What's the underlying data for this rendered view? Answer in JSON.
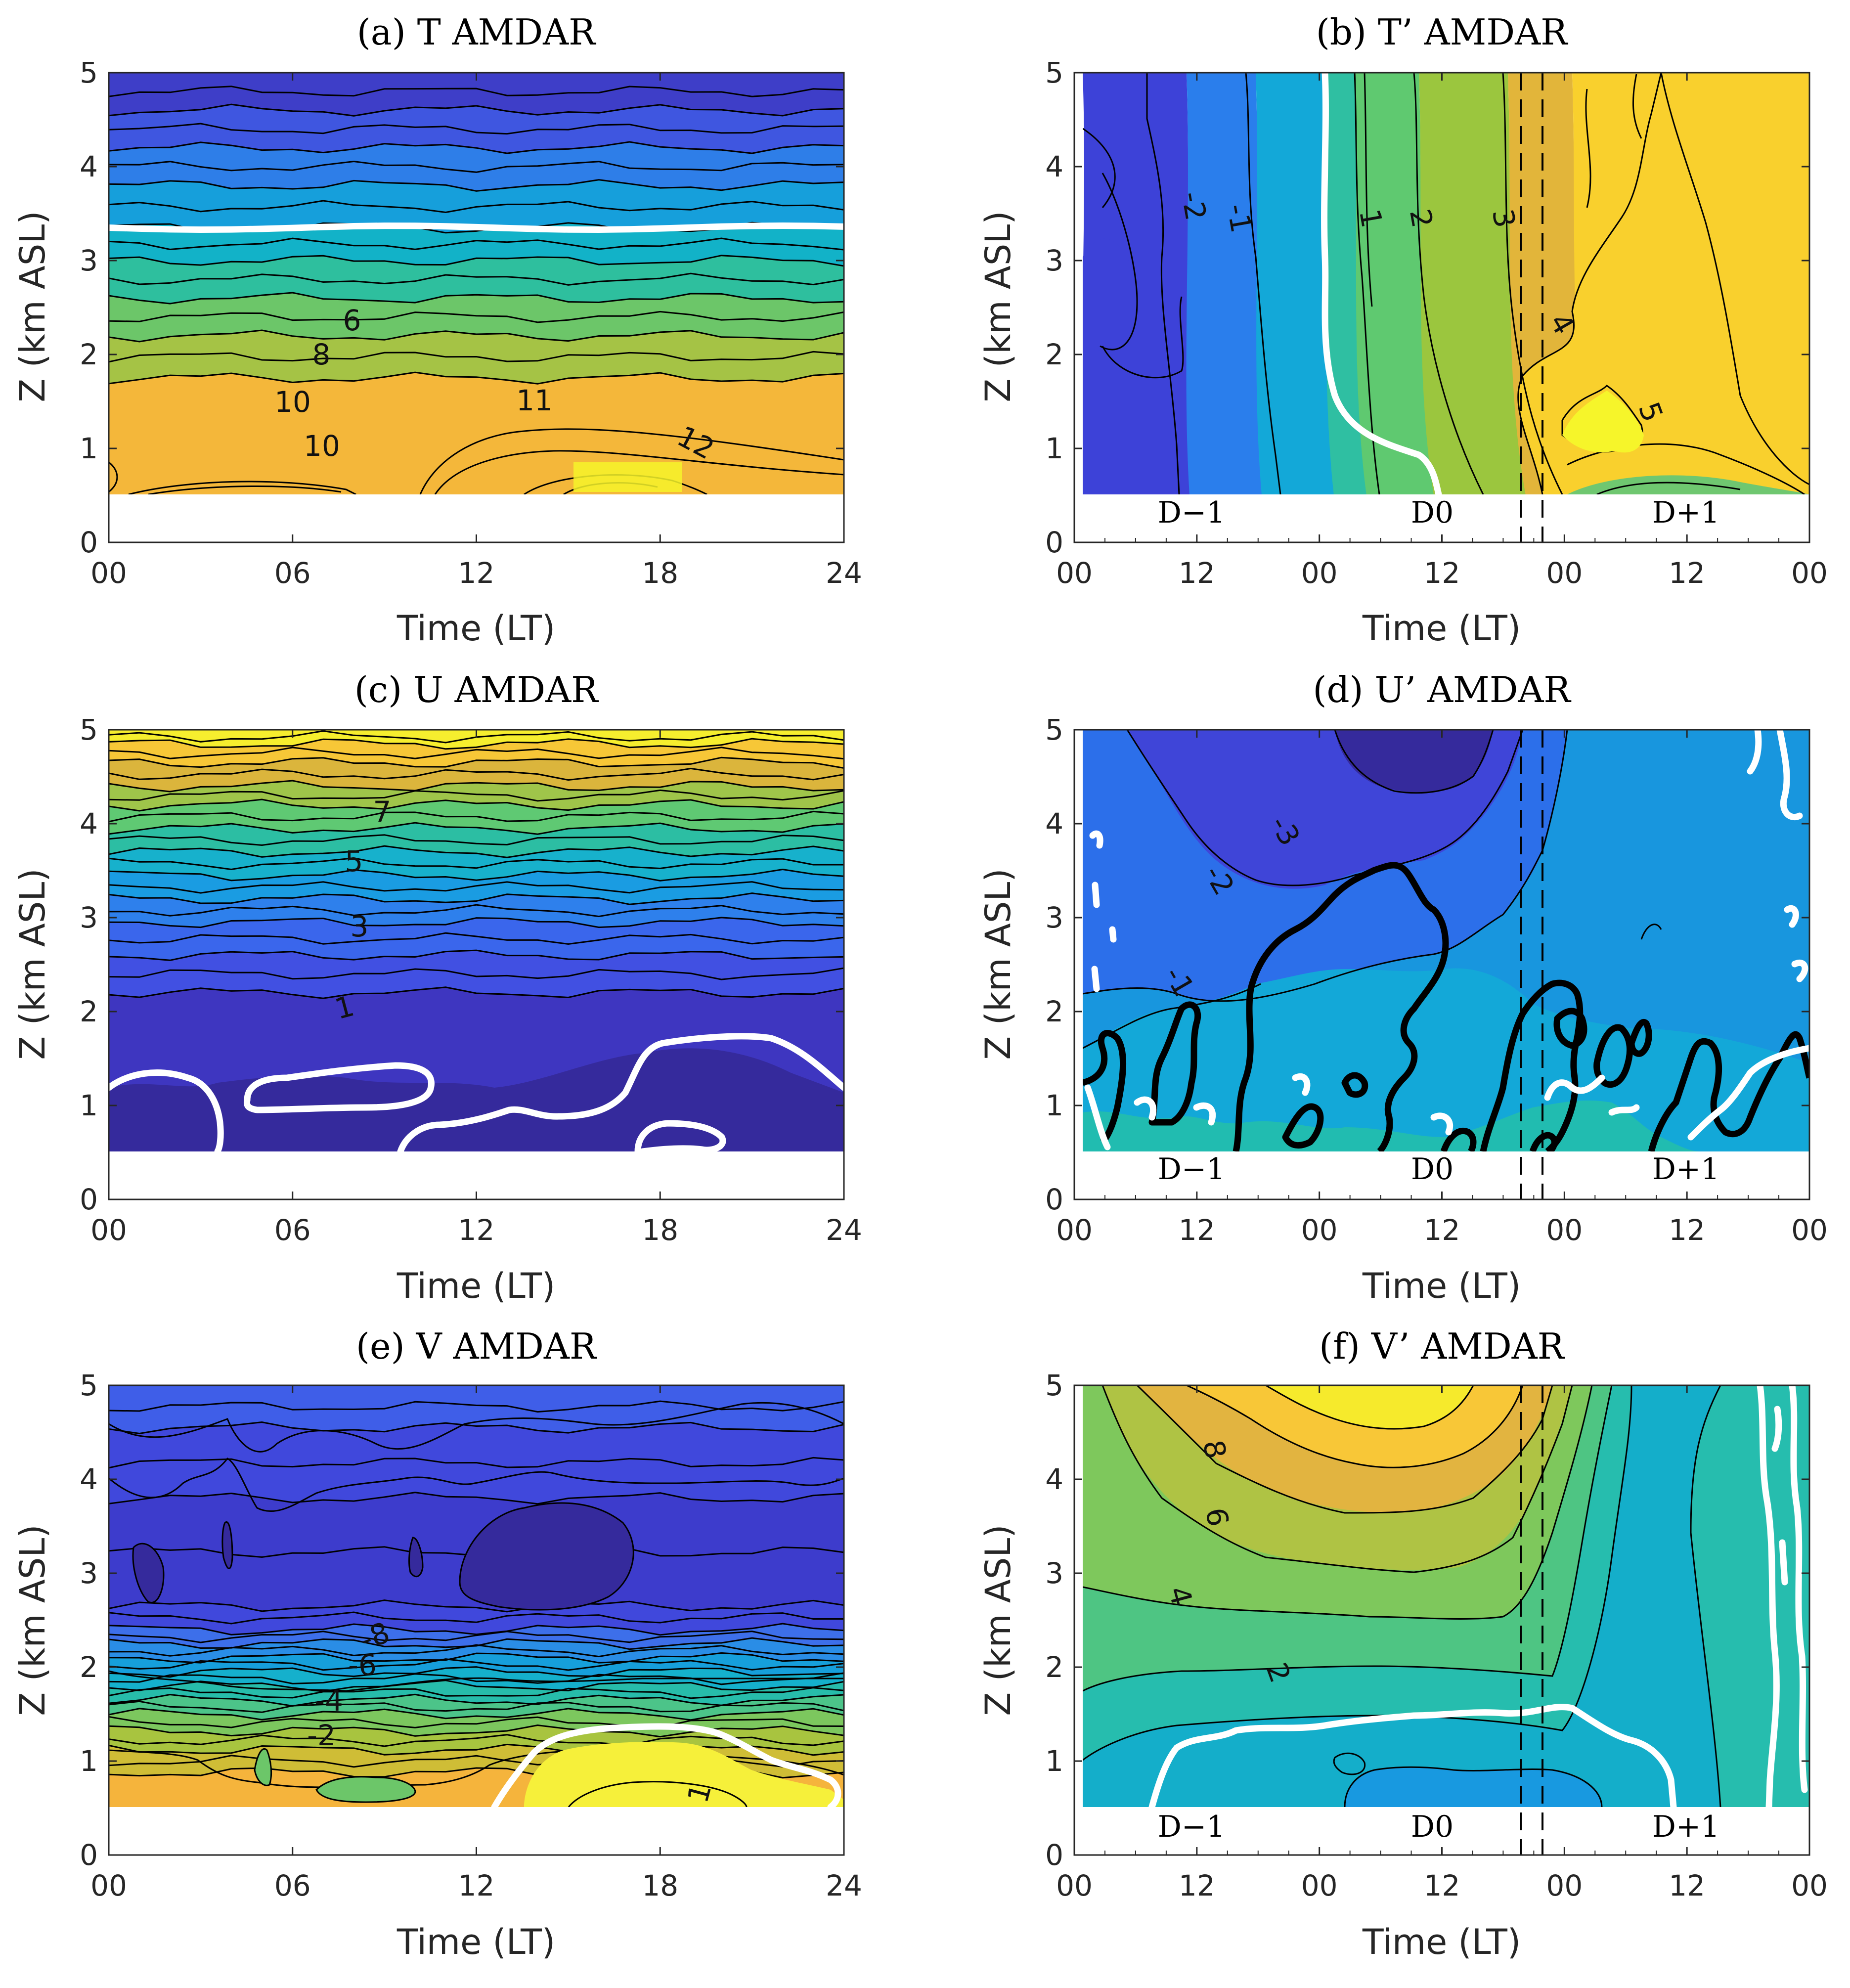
{
  "chart_data": [
    {
      "type": "heatmap",
      "panel": "a",
      "title": "(a) T AMDAR",
      "xlabel": "Time (LT)",
      "ylabel": "Z (km ASL)",
      "xlim": [
        0,
        24
      ],
      "ylim": [
        0,
        5
      ],
      "xticks": [
        "00",
        "06",
        "12",
        "18",
        "24"
      ],
      "yticks": [
        "0",
        "1",
        "2",
        "3",
        "4",
        "5"
      ],
      "data_bottom_km": 0.5,
      "zero_line_km": 3.35,
      "contour_labels": [
        "6",
        "8",
        "10",
        "11",
        "10",
        "12"
      ],
      "bands": [
        {
          "z_top": 5.0,
          "value": -14,
          "color": "#3e3ec8"
        },
        {
          "z_top": 4.6,
          "value": -11,
          "color": "#3f56e0"
        },
        {
          "z_top": 4.2,
          "value": -8,
          "color": "#2e7ee8"
        },
        {
          "z_top": 3.8,
          "value": -5,
          "color": "#169fdb"
        },
        {
          "z_top": 3.35,
          "value": -2,
          "color": "#12b2c8"
        },
        {
          "z_top": 3.0,
          "value": 1,
          "color": "#2ebf9e"
        },
        {
          "z_top": 2.6,
          "value": 4,
          "color": "#6cc669"
        },
        {
          "z_top": 2.2,
          "value": 7,
          "color": "#a5c345"
        },
        {
          "z_top": 1.75,
          "value": 10,
          "color": "#f4b73a"
        }
      ]
    },
    {
      "type": "heatmap",
      "panel": "b",
      "title": "(b) T’ AMDAR",
      "xlabel": "Time (LT)",
      "ylabel": "Z (km ASL)",
      "ylim": [
        0,
        5
      ],
      "xticks": [
        "00",
        "12",
        "00",
        "12",
        "00",
        "12",
        "00"
      ],
      "yticks": [
        "0",
        "1",
        "2",
        "3",
        "4",
        "5"
      ],
      "day_labels": [
        "D−1",
        "D0",
        "D+1"
      ],
      "contour_labels": [
        "-2",
        "-1",
        "1",
        "2",
        "3",
        "4",
        "5"
      ],
      "columns": [
        {
          "value": -2.5,
          "color": "#3d42d8"
        },
        {
          "value": -1.5,
          "color": "#2a7eec"
        },
        {
          "value": -0.5,
          "color": "#13a8d8"
        },
        {
          "value": 0.5,
          "color": "#2fbfa2"
        },
        {
          "value": 1.5,
          "color": "#5fc970"
        },
        {
          "value": 2.5,
          "color": "#9bc63e"
        },
        {
          "value": 3.5,
          "color": "#e2b53a"
        },
        {
          "value": 4.5,
          "color": "#f9d02d"
        },
        {
          "value": 5.5,
          "color": "#f6f52a"
        }
      ]
    },
    {
      "type": "heatmap",
      "panel": "c",
      "title": "(c) U AMDAR",
      "xlabel": "Time (LT)",
      "ylabel": "Z (km ASL)",
      "xlim": [
        0,
        24
      ],
      "ylim": [
        0,
        5
      ],
      "xticks": [
        "00",
        "06",
        "12",
        "18",
        "24"
      ],
      "yticks": [
        "0",
        "1",
        "2",
        "3",
        "4",
        "5"
      ],
      "contour_labels": [
        "7",
        "5",
        "3",
        "1"
      ],
      "bands": [
        {
          "z_top": 5.0,
          "value": 10,
          "color": "#f6ee2e"
        },
        {
          "z_top": 4.85,
          "value": 9,
          "color": "#f7c737"
        },
        {
          "z_top": 4.65,
          "value": 8,
          "color": "#dbb53c"
        },
        {
          "z_top": 4.4,
          "value": 7,
          "color": "#9fc54a"
        },
        {
          "z_top": 4.2,
          "value": 6,
          "color": "#5fc973"
        },
        {
          "z_top": 3.95,
          "value": 5,
          "color": "#2cbea3"
        },
        {
          "z_top": 3.7,
          "value": 4,
          "color": "#17b1cc"
        },
        {
          "z_top": 3.45,
          "value": 3,
          "color": "#1a9ce2"
        },
        {
          "z_top": 3.2,
          "value": 2,
          "color": "#2e80ec"
        },
        {
          "z_top": 2.95,
          "value": 1.5,
          "color": "#3a66ec"
        },
        {
          "z_top": 2.6,
          "value": 1,
          "color": "#4150e2"
        },
        {
          "z_top": 2.2,
          "value": 0.5,
          "color": "#3e36c0"
        }
      ]
    },
    {
      "type": "heatmap",
      "panel": "d",
      "title": "(d) U’ AMDAR",
      "xlabel": "Time (LT)",
      "ylabel": "Z (km ASL)",
      "ylim": [
        0,
        5
      ],
      "xticks": [
        "00",
        "12",
        "00",
        "12",
        "00",
        "12",
        "00"
      ],
      "yticks": [
        "0",
        "1",
        "2",
        "3",
        "4",
        "5"
      ],
      "day_labels": [
        "D−1",
        "D0",
        "D+1"
      ],
      "contour_labels": [
        "-3",
        "-2",
        "-1"
      ],
      "colors": [
        "#352a9c",
        "#3f45d8",
        "#2c6fea",
        "#1896de",
        "#13a8d8",
        "#21bcb0"
      ]
    },
    {
      "type": "heatmap",
      "panel": "e",
      "title": "(e) V AMDAR",
      "xlabel": "Time (LT)",
      "ylabel": "Z (km ASL)",
      "xlim": [
        0,
        24
      ],
      "ylim": [
        0,
        5
      ],
      "xticks": [
        "00",
        "06",
        "12",
        "18",
        "24"
      ],
      "yticks": [
        "0",
        "1",
        "2",
        "3",
        "4",
        "5"
      ],
      "contour_labels": [
        "-8",
        "-6",
        "-4",
        "-2",
        "1"
      ],
      "bands": [
        {
          "z_top": 5.0,
          "value": -10,
          "color": "#3f5ee8"
        },
        {
          "z_top": 4.55,
          "value": -11,
          "color": "#4048dc"
        },
        {
          "z_top": 3.8,
          "value": -12,
          "color": "#3d3ccc"
        },
        {
          "z_top": 2.65,
          "value": -11,
          "color": "#4048dc"
        },
        {
          "z_top": 2.4,
          "value": -10,
          "color": "#3d6fea"
        },
        {
          "z_top": 2.25,
          "value": -9,
          "color": "#2a8de6"
        },
        {
          "z_top": 2.1,
          "value": -8,
          "color": "#169fdb"
        },
        {
          "z_top": 1.95,
          "value": -7,
          "color": "#15b0cc"
        },
        {
          "z_top": 1.8,
          "value": -6,
          "color": "#27bcaa"
        },
        {
          "z_top": 1.65,
          "value": -5,
          "color": "#4cc489"
        },
        {
          "z_top": 1.5,
          "value": -4,
          "color": "#7cc75e"
        },
        {
          "z_top": 1.32,
          "value": -3,
          "color": "#a8c43f"
        },
        {
          "z_top": 1.12,
          "value": -2,
          "color": "#cfbd36"
        },
        {
          "z_top": 0.88,
          "value": -1,
          "color": "#f5b43c"
        }
      ]
    },
    {
      "type": "heatmap",
      "panel": "f",
      "title": "(f) V’ AMDAR",
      "xlabel": "Time (LT)",
      "ylabel": "Z (km ASL)",
      "ylim": [
        0,
        5
      ],
      "xticks": [
        "00",
        "12",
        "00",
        "12",
        "00",
        "12",
        "00"
      ],
      "yticks": [
        "0",
        "1",
        "2",
        "3",
        "4",
        "5"
      ],
      "day_labels": [
        "D−1",
        "D0",
        "D+1"
      ],
      "contour_labels": [
        "8",
        "6",
        "4",
        "2"
      ],
      "colors": [
        "#f6ea2c",
        "#f8c737",
        "#e2b440",
        "#afc344",
        "#7ec85c",
        "#4ec583",
        "#26bdae",
        "#14aeca",
        "#1899e0"
      ]
    }
  ]
}
